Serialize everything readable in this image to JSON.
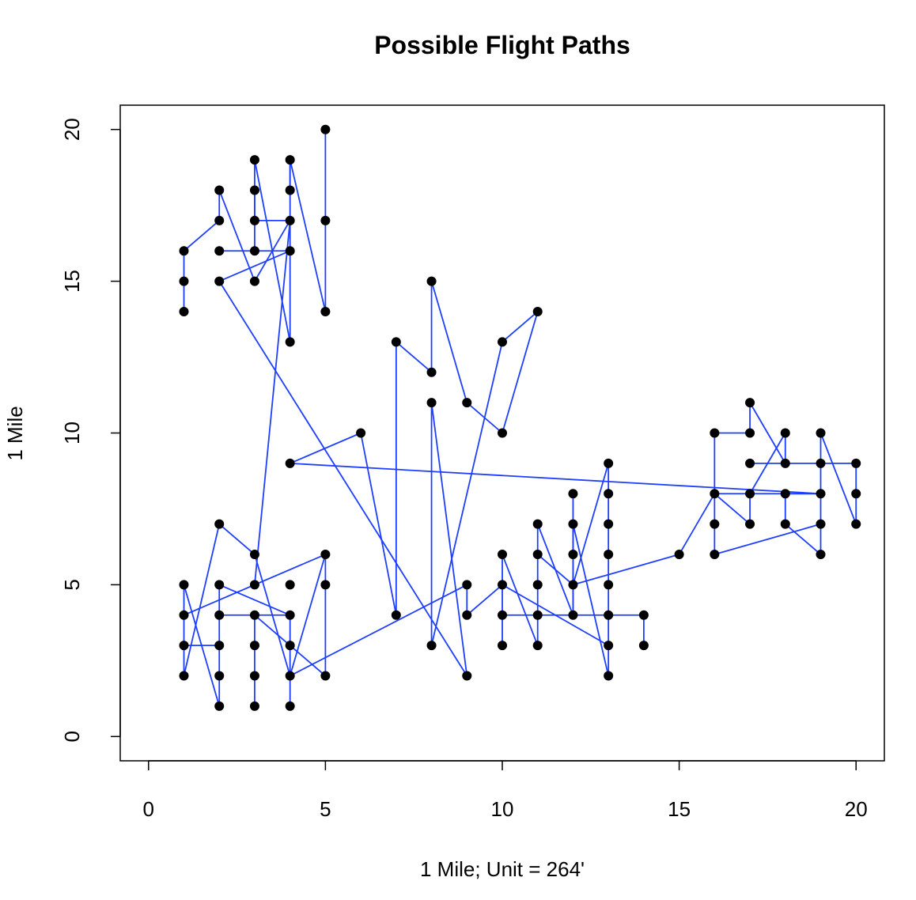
{
  "chart_data": {
    "type": "scatter",
    "title": "Possible Flight Paths",
    "xlabel": "1 Mile; Unit = 264'",
    "ylabel": "1 Mile",
    "xlim": [
      -0.8,
      20.8
    ],
    "ylim": [
      -0.8,
      20.8
    ],
    "xticks": [
      0,
      5,
      10,
      15,
      20
    ],
    "yticks": [
      0,
      5,
      10,
      15,
      20
    ],
    "grid": false,
    "point_color": "#000000",
    "line_color": "#1f3fff",
    "points": [
      [
        1,
        16
      ],
      [
        1,
        15
      ],
      [
        1,
        14
      ],
      [
        2,
        18
      ],
      [
        2,
        17
      ],
      [
        2,
        16
      ],
      [
        2,
        15
      ],
      [
        3,
        19
      ],
      [
        3,
        18
      ],
      [
        3,
        17
      ],
      [
        3,
        16
      ],
      [
        3,
        15
      ],
      [
        4,
        19
      ],
      [
        4,
        18
      ],
      [
        4,
        17
      ],
      [
        4,
        16
      ],
      [
        4,
        13
      ],
      [
        5,
        20
      ],
      [
        5,
        17
      ],
      [
        5,
        14
      ],
      [
        1,
        5
      ],
      [
        1,
        4
      ],
      [
        1,
        3
      ],
      [
        1,
        2
      ],
      [
        2,
        7
      ],
      [
        2,
        5
      ],
      [
        2,
        4
      ],
      [
        2,
        3
      ],
      [
        2,
        2
      ],
      [
        2,
        1
      ],
      [
        3,
        6
      ],
      [
        3,
        5
      ],
      [
        3,
        4
      ],
      [
        3,
        3
      ],
      [
        3,
        2
      ],
      [
        3,
        1
      ],
      [
        4,
        5
      ],
      [
        4,
        4
      ],
      [
        4,
        3
      ],
      [
        4,
        2
      ],
      [
        4,
        1
      ],
      [
        5,
        6
      ],
      [
        5,
        5
      ],
      [
        5,
        2
      ],
      [
        4,
        9
      ],
      [
        6,
        10
      ],
      [
        7,
        13
      ],
      [
        7,
        4
      ],
      [
        8,
        15
      ],
      [
        8,
        12
      ],
      [
        8,
        11
      ],
      [
        8,
        3
      ],
      [
        9,
        11
      ],
      [
        9,
        5
      ],
      [
        9,
        4
      ],
      [
        9,
        2
      ],
      [
        10,
        13
      ],
      [
        10,
        10
      ],
      [
        10,
        6
      ],
      [
        10,
        5
      ],
      [
        10,
        4
      ],
      [
        10,
        3
      ],
      [
        11,
        14
      ],
      [
        11,
        7
      ],
      [
        11,
        6
      ],
      [
        11,
        5
      ],
      [
        11,
        4
      ],
      [
        11,
        3
      ],
      [
        12,
        8
      ],
      [
        12,
        7
      ],
      [
        12,
        6
      ],
      [
        12,
        5
      ],
      [
        12,
        4
      ],
      [
        13,
        9
      ],
      [
        13,
        8
      ],
      [
        13,
        7
      ],
      [
        13,
        6
      ],
      [
        13,
        5
      ],
      [
        13,
        4
      ],
      [
        13,
        3
      ],
      [
        13,
        2
      ],
      [
        14,
        4
      ],
      [
        14,
        3
      ],
      [
        15,
        6
      ],
      [
        16,
        10
      ],
      [
        16,
        8
      ],
      [
        16,
        7
      ],
      [
        16,
        6
      ],
      [
        17,
        11
      ],
      [
        17,
        10
      ],
      [
        17,
        9
      ],
      [
        17,
        8
      ],
      [
        17,
        7
      ],
      [
        18,
        10
      ],
      [
        18,
        9
      ],
      [
        18,
        8
      ],
      [
        18,
        7
      ],
      [
        19,
        10
      ],
      [
        19,
        9
      ],
      [
        19,
        8
      ],
      [
        19,
        7
      ],
      [
        19,
        6
      ],
      [
        20,
        9
      ],
      [
        20,
        8
      ],
      [
        20,
        7
      ]
    ],
    "segments": [
      [
        1,
        14,
        1,
        16
      ],
      [
        1,
        16,
        2,
        17
      ],
      [
        2,
        17,
        2,
        18
      ],
      [
        2,
        18,
        3,
        15
      ],
      [
        3,
        15,
        4,
        17
      ],
      [
        4,
        17,
        3,
        17
      ],
      [
        3,
        17,
        3,
        19
      ],
      [
        3,
        19,
        4,
        13
      ],
      [
        4,
        13,
        4,
        19
      ],
      [
        4,
        19,
        5,
        14
      ],
      [
        5,
        14,
        5,
        20
      ],
      [
        2,
        16,
        4,
        16
      ],
      [
        4,
        16,
        2,
        15
      ],
      [
        3,
        16,
        3,
        18
      ],
      [
        2,
        15,
        9,
        2
      ],
      [
        9,
        2,
        8,
        11
      ],
      [
        8,
        11,
        8,
        3
      ],
      [
        8,
        3,
        10,
        13
      ],
      [
        10,
        13,
        11,
        14
      ],
      [
        11,
        14,
        10,
        10
      ],
      [
        10,
        10,
        9,
        11
      ],
      [
        9,
        11,
        8,
        15
      ],
      [
        8,
        15,
        8,
        12
      ],
      [
        8,
        12,
        7,
        13
      ],
      [
        7,
        13,
        7,
        4
      ],
      [
        7,
        4,
        6,
        10
      ],
      [
        6,
        10,
        4,
        9
      ],
      [
        4,
        9,
        19,
        8
      ],
      [
        19,
        8,
        17,
        8
      ],
      [
        17,
        8,
        17,
        7
      ],
      [
        17,
        7,
        16,
        8
      ],
      [
        16,
        8,
        15,
        6
      ],
      [
        15,
        6,
        12,
        5
      ],
      [
        12,
        5,
        13,
        9
      ],
      [
        13,
        9,
        13,
        2
      ],
      [
        13,
        2,
        12,
        7
      ],
      [
        12,
        7,
        12,
        4
      ],
      [
        12,
        4,
        11,
        7
      ],
      [
        11,
        7,
        11,
        3
      ],
      [
        11,
        3,
        10,
        6
      ],
      [
        10,
        6,
        10,
        3
      ],
      [
        10,
        4,
        14,
        4
      ],
      [
        14,
        4,
        14,
        3
      ],
      [
        10,
        5,
        13,
        3
      ],
      [
        11,
        6,
        12,
        5
      ],
      [
        12,
        8,
        12,
        4
      ],
      [
        9,
        5,
        9,
        4
      ],
      [
        9,
        4,
        10,
        5
      ],
      [
        9,
        5,
        4,
        2
      ],
      [
        4,
        2,
        5,
        6
      ],
      [
        5,
        6,
        5,
        2
      ],
      [
        4,
        2,
        3,
        6
      ],
      [
        3,
        6,
        2,
        7
      ],
      [
        2,
        7,
        1,
        2
      ],
      [
        1,
        2,
        1,
        5
      ],
      [
        1,
        5,
        2,
        1
      ],
      [
        2,
        1,
        2,
        5
      ],
      [
        2,
        5,
        4,
        4
      ],
      [
        4,
        4,
        4,
        1
      ],
      [
        4,
        4,
        2,
        4
      ],
      [
        3,
        5,
        4,
        17
      ],
      [
        3,
        4,
        3,
        1
      ],
      [
        3,
        4,
        5,
        2
      ],
      [
        1,
        4,
        5,
        6
      ],
      [
        1,
        3,
        2,
        3
      ],
      [
        16,
        6,
        16,
        10
      ],
      [
        16,
        10,
        17,
        10
      ],
      [
        17,
        10,
        17,
        11
      ],
      [
        17,
        11,
        18,
        9
      ],
      [
        18,
        9,
        18,
        10
      ],
      [
        18,
        10,
        17,
        8
      ],
      [
        17,
        9,
        20,
        9
      ],
      [
        20,
        9,
        20,
        7
      ],
      [
        20,
        7,
        19,
        10
      ],
      [
        19,
        10,
        19,
        6
      ],
      [
        19,
        6,
        18,
        7
      ],
      [
        18,
        7,
        18,
        8
      ],
      [
        18,
        8,
        19,
        8
      ],
      [
        16,
        6,
        19,
        7
      ],
      [
        17,
        8,
        16,
        8
      ],
      [
        4,
        18,
        4,
        19
      ]
    ]
  }
}
